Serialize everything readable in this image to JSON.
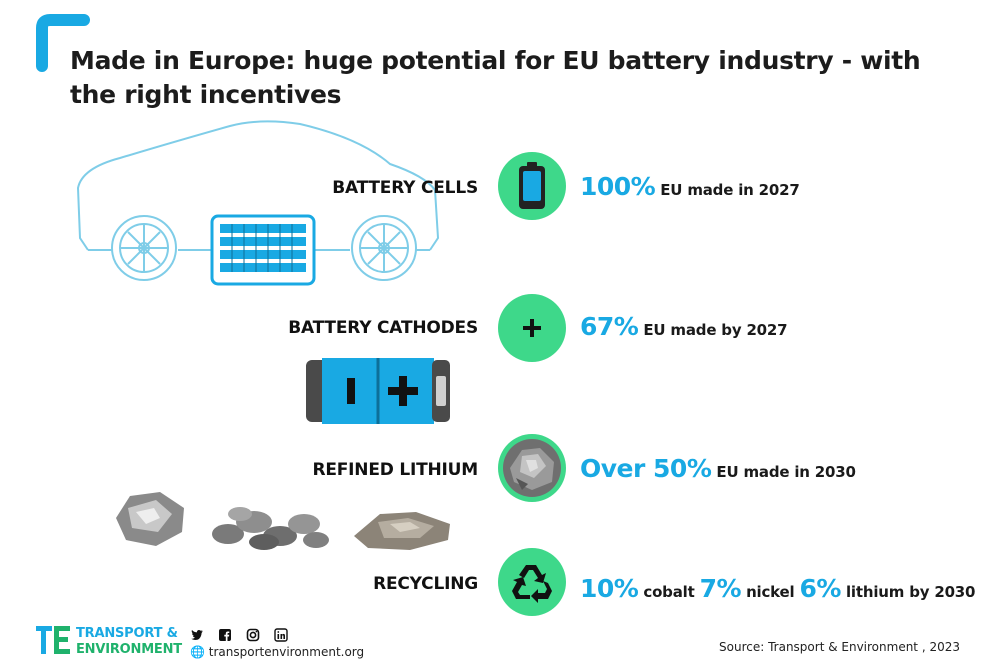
{
  "title": "Made in Europe: huge potential for EU battery industry - with the right incentives",
  "colors": {
    "accent_blue": "#19a9e3",
    "accent_green": "#3ed88a",
    "car_outline": "#7fcde8"
  },
  "rows": [
    {
      "label": "BATTERY CELLS",
      "icon": "battery-cell-icon",
      "highlight": "100%",
      "text": "EU made in 2027"
    },
    {
      "label": "BATTERY CATHODES",
      "icon": "plus-icon",
      "highlight": "67%",
      "text": "EU made by 2027"
    },
    {
      "label": "REFINED LITHIUM",
      "icon": "lithium-rock-icon",
      "highlight": "Over 50%",
      "text": "EU made in 2030"
    },
    {
      "label": "RECYCLING",
      "icon": "recycle-icon",
      "parts": [
        {
          "highlight": "10%",
          "text": "cobalt"
        },
        {
          "highlight": "7%",
          "text": "nickel"
        },
        {
          "highlight": "6%",
          "text": "lithium by 2030"
        }
      ]
    }
  ],
  "footer": {
    "logo_line1": "TRANSPORT &",
    "logo_line2": "ENVIRONMENT",
    "social_icons": [
      "twitter-icon",
      "facebook-icon",
      "instagram-icon",
      "linkedin-icon"
    ],
    "url": "transportenvironment.org",
    "source": "Source: Transport & Environment , 2023"
  }
}
